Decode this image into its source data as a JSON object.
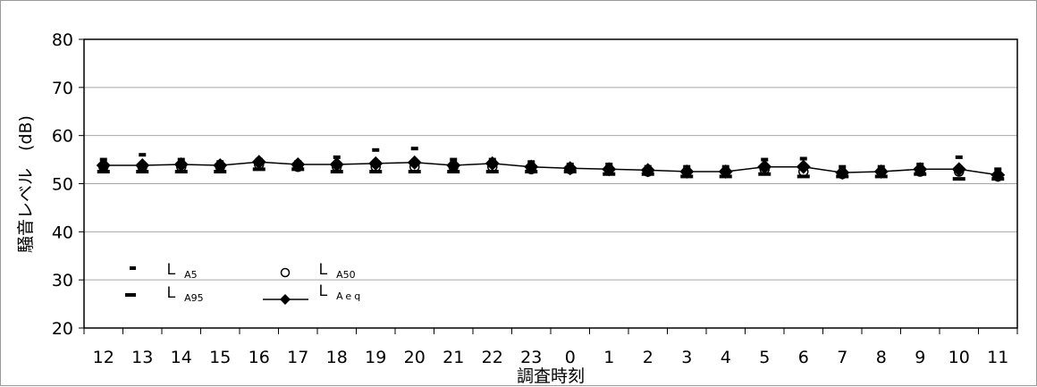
{
  "chart_data": {
    "type": "line",
    "xlabel": "調査時刻",
    "ylabel": "騒音レベル　(dB)",
    "ylim": [
      20,
      80
    ],
    "yticks": [
      20,
      30,
      40,
      50,
      60,
      70,
      80
    ],
    "grid": "horizontal",
    "legend_position": "bottom-left",
    "categories": [
      "12",
      "13",
      "14",
      "15",
      "16",
      "17",
      "18",
      "19",
      "20",
      "21",
      "22",
      "23",
      "0",
      "1",
      "2",
      "3",
      "4",
      "5",
      "6",
      "7",
      "8",
      "9",
      "10",
      "11"
    ],
    "series": [
      {
        "key": "la5",
        "name_main": "Ｌ",
        "name_sub": "A5",
        "marker": "dash-short",
        "values": [
          55.0,
          56.0,
          55.0,
          54.5,
          55.0,
          54.5,
          55.5,
          57.0,
          57.3,
          55.0,
          55.0,
          54.5,
          54.0,
          54.0,
          53.5,
          53.5,
          53.5,
          55.0,
          55.2,
          53.5,
          53.5,
          54.0,
          55.5,
          53.0
        ]
      },
      {
        "key": "la50",
        "name_main": "Ｌ",
        "name_sub": "A50",
        "marker": "circle",
        "values": [
          53.5,
          53.5,
          53.5,
          53.5,
          54.0,
          53.5,
          53.5,
          53.5,
          53.5,
          53.5,
          53.5,
          53.0,
          53.0,
          53.0,
          52.5,
          52.5,
          52.5,
          53.0,
          52.5,
          52.0,
          52.5,
          52.5,
          52.5,
          51.5
        ]
      },
      {
        "key": "la95",
        "name_main": "Ｌ",
        "name_sub": "A95",
        "marker": "dash-long",
        "values": [
          52.5,
          52.5,
          52.5,
          52.5,
          53.0,
          53.0,
          52.5,
          52.5,
          52.5,
          52.5,
          52.5,
          52.5,
          52.5,
          52.0,
          52.0,
          51.5,
          51.5,
          52.0,
          51.5,
          51.5,
          51.5,
          52.0,
          51.0,
          51.0
        ]
      },
      {
        "key": "laeq",
        "name_main": "Ｌ",
        "name_sub": "Aeq",
        "marker": "diamond-line",
        "values": [
          53.8,
          53.8,
          54.0,
          53.8,
          54.5,
          54.0,
          54.0,
          54.2,
          54.4,
          53.8,
          54.2,
          53.5,
          53.2,
          53.0,
          52.8,
          52.5,
          52.5,
          53.5,
          53.5,
          52.3,
          52.5,
          53.0,
          53.0,
          51.8
        ]
      }
    ]
  }
}
